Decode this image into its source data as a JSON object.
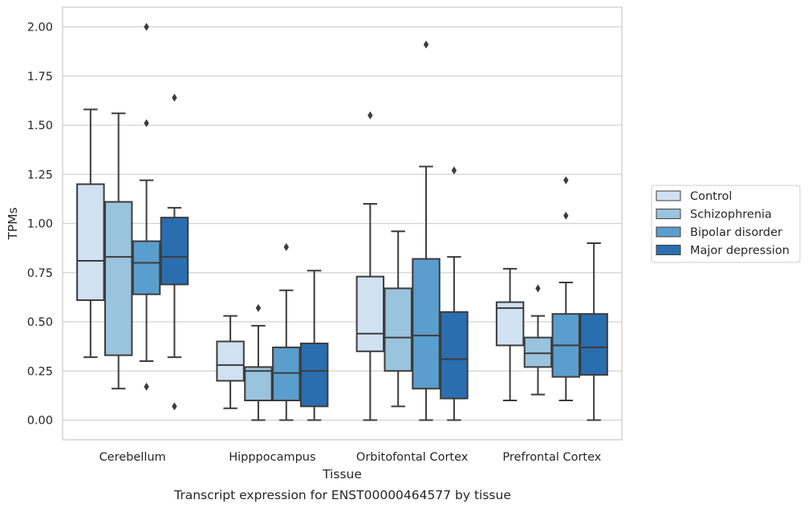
{
  "chart_data": {
    "type": "boxplot",
    "caption": "Transcript expression for ENST00000464577 by tissue",
    "xlabel": "Tissue",
    "ylabel": "TPMs",
    "ylim": [
      -0.1,
      2.1
    ],
    "yticks": [
      0.0,
      0.25,
      0.5,
      0.75,
      1.0,
      1.25,
      1.5,
      1.75,
      2.0
    ],
    "ytick_labels": [
      "0.00",
      "0.25",
      "0.50",
      "0.75",
      "1.00",
      "1.25",
      "1.50",
      "1.75",
      "2.00"
    ],
    "grid": "horizontal",
    "legend_position": "right-outside",
    "categories": [
      "Cerebellum",
      "Hipppocampus",
      "Orbitofontal Cortex",
      "Prefrontal Cortex"
    ],
    "series": [
      {
        "name": "Control",
        "color": "#d0e1f2",
        "boxes": [
          {
            "whisker_low": 0.32,
            "q1": 0.61,
            "median": 0.81,
            "q3": 1.2,
            "whisker_high": 1.58,
            "outliers": []
          },
          {
            "whisker_low": 0.06,
            "q1": 0.2,
            "median": 0.28,
            "q3": 0.4,
            "whisker_high": 0.53,
            "outliers": []
          },
          {
            "whisker_low": 0.0,
            "q1": 0.35,
            "median": 0.44,
            "q3": 0.73,
            "whisker_high": 1.1,
            "outliers": [
              1.55
            ]
          },
          {
            "whisker_low": 0.1,
            "q1": 0.38,
            "median": 0.57,
            "q3": 0.6,
            "whisker_high": 0.77,
            "outliers": []
          }
        ]
      },
      {
        "name": "Schizophrenia",
        "color": "#9ac3de",
        "boxes": [
          {
            "whisker_low": 0.16,
            "q1": 0.33,
            "median": 0.83,
            "q3": 1.11,
            "whisker_high": 1.56,
            "outliers": []
          },
          {
            "whisker_low": 0.0,
            "q1": 0.1,
            "median": 0.25,
            "q3": 0.27,
            "whisker_high": 0.48,
            "outliers": [
              0.57
            ]
          },
          {
            "whisker_low": 0.07,
            "q1": 0.25,
            "median": 0.42,
            "q3": 0.67,
            "whisker_high": 0.96,
            "outliers": []
          },
          {
            "whisker_low": 0.13,
            "q1": 0.27,
            "median": 0.34,
            "q3": 0.42,
            "whisker_high": 0.53,
            "outliers": [
              0.67
            ]
          }
        ]
      },
      {
        "name": "Bipolar disorder",
        "color": "#5a9ecd",
        "boxes": [
          {
            "whisker_low": 0.3,
            "q1": 0.64,
            "median": 0.8,
            "q3": 0.91,
            "whisker_high": 1.22,
            "outliers": [
              1.51,
              2.0,
              0.17
            ]
          },
          {
            "whisker_low": 0.0,
            "q1": 0.1,
            "median": 0.24,
            "q3": 0.37,
            "whisker_high": 0.66,
            "outliers": [
              0.88
            ]
          },
          {
            "whisker_low": 0.0,
            "q1": 0.16,
            "median": 0.43,
            "q3": 0.82,
            "whisker_high": 1.29,
            "outliers": [
              1.91
            ]
          },
          {
            "whisker_low": 0.1,
            "q1": 0.22,
            "median": 0.38,
            "q3": 0.54,
            "whisker_high": 0.7,
            "outliers": [
              1.04,
              1.22
            ]
          }
        ]
      },
      {
        "name": "Major depression",
        "color": "#2a6eb0",
        "boxes": [
          {
            "whisker_low": 0.32,
            "q1": 0.69,
            "median": 0.83,
            "q3": 1.03,
            "whisker_high": 1.08,
            "outliers": [
              1.64,
              0.07
            ]
          },
          {
            "whisker_low": 0.0,
            "q1": 0.07,
            "median": 0.25,
            "q3": 0.39,
            "whisker_high": 0.76,
            "outliers": []
          },
          {
            "whisker_low": 0.0,
            "q1": 0.11,
            "median": 0.31,
            "q3": 0.55,
            "whisker_high": 0.83,
            "outliers": [
              1.27
            ]
          },
          {
            "whisker_low": 0.0,
            "q1": 0.23,
            "median": 0.37,
            "q3": 0.54,
            "whisker_high": 0.9,
            "outliers": []
          }
        ]
      }
    ]
  }
}
